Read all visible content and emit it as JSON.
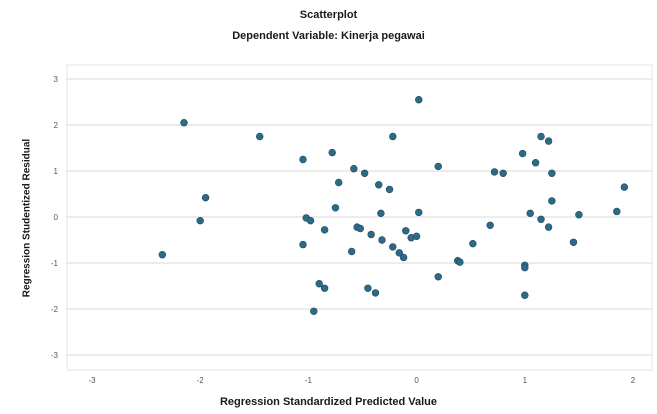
{
  "chart_data": {
    "type": "scatter",
    "title": "Scatterplot",
    "subtitle": "Dependent Variable: Kinerja pegawai",
    "xlabel": "Regression Standardized Predicted Value",
    "ylabel": "Regression Studentized Residual",
    "xlim": [
      -3,
      2
    ],
    "ylim": [
      -3,
      3
    ],
    "xticks": [
      -3,
      -2,
      -1,
      0,
      1,
      2
    ],
    "yticks": [
      -3,
      -2,
      -1,
      0,
      1,
      2,
      3
    ],
    "grid": "horizontal",
    "marker_color": "#2e6a86",
    "points": [
      [
        -2.35,
        -0.82
      ],
      [
        -2.15,
        2.05
      ],
      [
        -1.95,
        0.42
      ],
      [
        -2.0,
        -0.08
      ],
      [
        -1.45,
        1.75
      ],
      [
        -1.05,
        1.25
      ],
      [
        -1.05,
        -0.6
      ],
      [
        -1.02,
        -0.02
      ],
      [
        -0.98,
        -0.08
      ],
      [
        -0.95,
        -2.05
      ],
      [
        -0.9,
        -1.45
      ],
      [
        -0.85,
        -1.55
      ],
      [
        -0.85,
        -0.28
      ],
      [
        -0.78,
        1.4
      ],
      [
        -0.75,
        0.2
      ],
      [
        -0.72,
        0.75
      ],
      [
        -0.6,
        -0.75
      ],
      [
        -0.58,
        1.05
      ],
      [
        -0.55,
        -0.22
      ],
      [
        -0.52,
        -0.25
      ],
      [
        -0.48,
        0.95
      ],
      [
        -0.45,
        -1.55
      ],
      [
        -0.42,
        -0.38
      ],
      [
        -0.38,
        -1.65
      ],
      [
        -0.35,
        0.7
      ],
      [
        -0.33,
        0.08
      ],
      [
        -0.32,
        -0.5
      ],
      [
        -0.25,
        0.6
      ],
      [
        -0.22,
        -0.65
      ],
      [
        -0.22,
        1.75
      ],
      [
        -0.16,
        -0.78
      ],
      [
        -0.12,
        -0.88
      ],
      [
        -0.1,
        -0.3
      ],
      [
        -0.05,
        -0.45
      ],
      [
        0.02,
        0.1
      ],
      [
        0.02,
        2.55
      ],
      [
        0.0,
        -0.42
      ],
      [
        0.2,
        1.1
      ],
      [
        0.2,
        -1.3
      ],
      [
        0.38,
        -0.95
      ],
      [
        0.4,
        -0.98
      ],
      [
        0.52,
        -0.58
      ],
      [
        0.68,
        -0.18
      ],
      [
        0.72,
        0.98
      ],
      [
        0.8,
        0.95
      ],
      [
        0.98,
        1.38
      ],
      [
        1.0,
        -1.05
      ],
      [
        1.0,
        -1.1
      ],
      [
        1.0,
        -1.7
      ],
      [
        1.05,
        0.08
      ],
      [
        1.1,
        1.18
      ],
      [
        1.15,
        1.75
      ],
      [
        1.15,
        -0.05
      ],
      [
        1.22,
        1.65
      ],
      [
        1.22,
        -0.22
      ],
      [
        1.25,
        0.95
      ],
      [
        1.25,
        0.35
      ],
      [
        1.45,
        -0.55
      ],
      [
        1.5,
        0.05
      ],
      [
        1.85,
        0.12
      ],
      [
        1.92,
        0.65
      ]
    ]
  }
}
